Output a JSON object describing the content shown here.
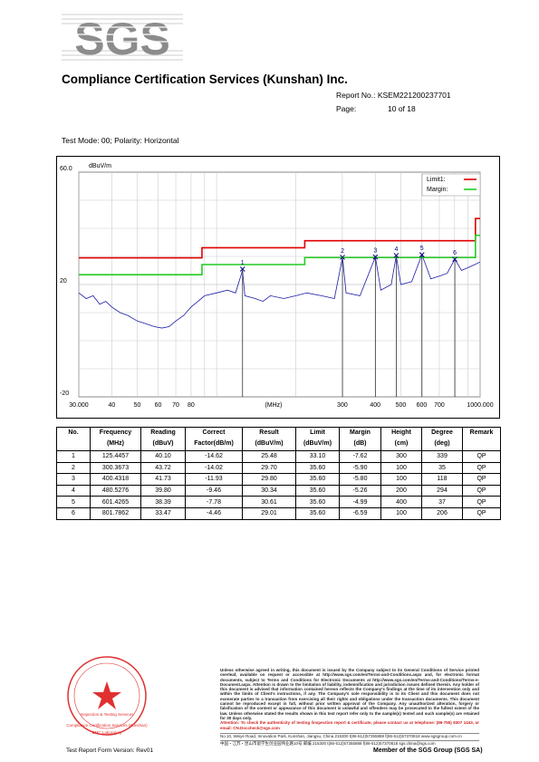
{
  "header": {
    "logo": "SGS",
    "company": "Compliance Certification Services (Kunshan) Inc.",
    "report_no": "Report No.: KSEM221200237701",
    "page_label": "Page:",
    "page": "10 of 18"
  },
  "test_mode": "Test Mode: 00; Polarity: Horizontal",
  "chart": {
    "type": "line",
    "y_unit": "dBuV/m",
    "x_unit": "(MHz)",
    "log_x": true,
    "xlim": [
      30,
      1000
    ],
    "ylim": [
      -20,
      60
    ],
    "xticks": [
      {
        "value": 30,
        "label": "30.000"
      },
      40,
      50,
      60,
      70,
      80,
      300,
      400,
      500,
      600,
      700,
      {
        "value": 1000,
        "label": "1000.000"
      }
    ],
    "xgrid": [
      90,
      100,
      200,
      800,
      900
    ],
    "yticks": [
      {
        "value": 60,
        "label": "60.0"
      },
      20,
      -20
    ],
    "ygrid": [
      50,
      40,
      30,
      10,
      0,
      -10
    ],
    "grid": true,
    "series": [
      {
        "name": "Limit1:",
        "color": "#e00000",
        "x": [
          30,
          88,
          88,
          216,
          216,
          960,
          960,
          1000
        ],
        "values": [
          29.5,
          29.5,
          33.1,
          33.1,
          35.6,
          35.6,
          43.5,
          43.5
        ]
      },
      {
        "name": "Margin:",
        "color": "#22cc22",
        "x": [
          30,
          88,
          88,
          216,
          216,
          960,
          960,
          1000
        ],
        "values": [
          23.5,
          23.5,
          27.1,
          27.1,
          29.6,
          29.6,
          37.5,
          37.5
        ]
      }
    ],
    "trace": {
      "color": "#1c1ca8",
      "x": [
        30,
        32,
        34,
        36,
        38,
        40,
        43,
        46,
        50,
        54,
        58,
        62,
        66,
        70,
        75,
        80,
        85,
        90,
        100,
        110,
        118,
        125.4,
        128,
        140,
        150,
        160,
        180,
        200,
        220,
        250,
        280,
        300.4,
        310,
        350,
        400.4,
        420,
        460,
        480.5,
        500,
        550,
        601.4,
        650,
        700,
        750,
        801.8,
        850,
        900,
        950,
        1000
      ],
      "values": [
        17,
        15,
        16,
        13,
        14,
        12,
        10,
        9,
        7,
        6,
        5,
        4.5,
        5,
        7,
        9,
        12,
        14,
        16,
        17,
        18,
        17,
        25,
        16,
        15,
        14,
        16,
        15,
        16,
        17,
        16,
        15,
        29.7,
        17,
        16,
        29.8,
        18,
        20,
        30.3,
        20,
        21,
        30.6,
        22,
        23,
        24,
        29,
        25,
        26,
        27,
        28
      ]
    },
    "marker_color": "#000080"
  },
  "table": {
    "columns": [
      [
        "No."
      ],
      [
        "Frequency",
        "(MHz)"
      ],
      [
        "Reading",
        "(dBuV)"
      ],
      [
        "Correct",
        "Factor(dB/m)"
      ],
      [
        "Result",
        "(dBuV/m)"
      ],
      [
        "Limit",
        "(dBuV/m)"
      ],
      [
        "Margin",
        "(dB)"
      ],
      [
        "Height",
        "(cm)"
      ],
      [
        "Degree",
        "(deg)"
      ],
      [
        "Remark"
      ]
    ],
    "rows": [
      [
        "1",
        "125.4457",
        "40.10",
        "-14.62",
        "25.48",
        "33.10",
        "-7.62",
        "300",
        "339",
        "QP"
      ],
      [
        "2",
        "300.3673",
        "43.72",
        "-14.02",
        "29.70",
        "35.60",
        "-5.90",
        "100",
        "35",
        "QP"
      ],
      [
        "3",
        "400.4318",
        "41.73",
        "-11.93",
        "29.80",
        "35.60",
        "-5.80",
        "100",
        "118",
        "QP"
      ],
      [
        "4",
        "480.5276",
        "39.80",
        "-9.46",
        "30.34",
        "35.60",
        "-5.26",
        "200",
        "294",
        "QP"
      ],
      [
        "5",
        "601.4265",
        "38.39",
        "-7.78",
        "30.61",
        "35.60",
        "-4.99",
        "400",
        "37",
        "QP"
      ],
      [
        "6",
        "801.7862",
        "33.47",
        "-4.46",
        "29.01",
        "35.60",
        "-6.59",
        "100",
        "206",
        "QP"
      ]
    ]
  },
  "stamp": [
    "Inspection & Testing Services",
    "Compliance Certification Services (Kunshan)",
    "EMC Laboratory"
  ],
  "footer": {
    "disclaimer": "Unless otherwise agreed in writing, this document is issued by the Company subject to its General Conditions of Service printed overleaf, available on request or accessible at http://www.sgs.com/en/Terms-and-Conditions.aspx and, for electronic format documents, subject to Terms and Conditions for Electronic Documents at http://www.sgs.com/en/Terms-and-Conditions/Terms-e-Document.aspx. Attention is drawn to the limitation of liability, indemnification and jurisdiction issues defined therein. Any holder of this document is advised that information contained hereon reflects the Company's findings at the time of its intervention only and within the limits of Client's instructions, if any. The Company's sole responsibility is to its Client and this document does not exonerate parties to a transaction from exercising all their rights and obligations under the transaction documents. This document cannot be reproduced except in full, without prior written approval of the Company. Any unauthorized alteration, forgery or falsification of the content or appearance of this document is unlawful and offenders may be prosecuted to the fullest extent of the law. Unless otherwise stated the results shown in this test report refer only to the sample(s) tested and such sample(s) are retained for 30 days only.",
    "attention": "Attention: To check the authenticity of testing /inspection report & certificate, please contact us at telephone: (86-755) 8307 1443, or email: CN.Doccheck@sgs.com",
    "address_en": "No.10, Weiye Road, Innovation Park, Kunshan, Jiangsu, China 215300    t(86-512)57355888    f(86-512)57370818    www.sgsgroup.com.cn",
    "address_cn": "中国・江苏・昆山市留学生创业园伟业路10号    邮编 215300    t(86-512)57355888    f(86-512)57370818    sgs.china@sgs.com",
    "form_version": "Test Report Form Version: Rev01",
    "member": "Member of the SGS Group (SGS SA)"
  }
}
